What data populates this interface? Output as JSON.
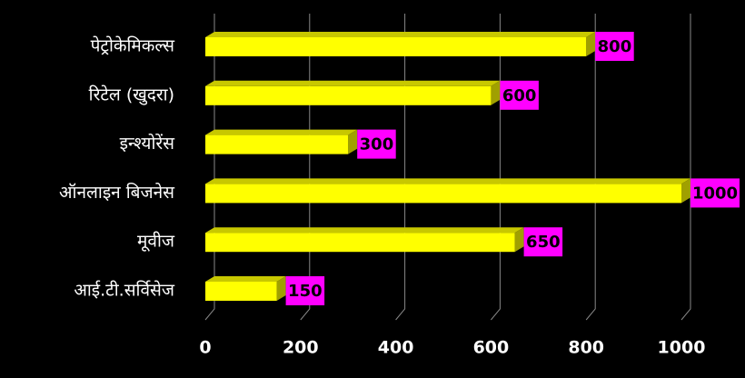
{
  "chart_data": {
    "type": "bar",
    "orientation": "horizontal",
    "categories": [
      "पेट्रोकेमिकल्स",
      "रिटेल (खुदरा)",
      "इन्श्योरेंस",
      "ऑनलाइन बिजनेस",
      "मूवीज",
      "आई.टी.सर्विसेज"
    ],
    "values": [
      800,
      600,
      300,
      1000,
      650,
      150
    ],
    "color": "#ffff00",
    "label_color": "#ff00ff",
    "xlim": [
      0,
      1000
    ],
    "xticks": [
      0,
      200,
      400,
      600,
      800,
      1000
    ],
    "grid": true
  }
}
